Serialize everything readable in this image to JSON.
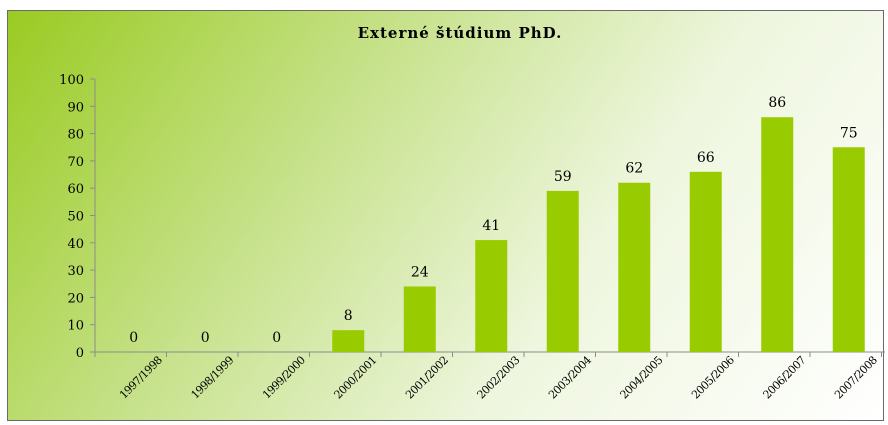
{
  "chart_data": {
    "type": "bar",
    "title": "Externé štúdium PhD.",
    "categories": [
      "1997/1998",
      "1998/1999",
      "1999/2000",
      "2000/2001",
      "2001/2002",
      "2002/2003",
      "2003/2004",
      "2004/2005",
      "2005/2006",
      "2006/2007",
      "2007/2008"
    ],
    "values": [
      0,
      0,
      0,
      8,
      24,
      41,
      59,
      62,
      66,
      86,
      75
    ],
    "data_labels": [
      "0",
      "0",
      "0",
      "8",
      "24",
      "41",
      "59",
      "62",
      "66",
      "86",
      "75"
    ],
    "yticks": [
      "0",
      "10",
      "20",
      "30",
      "40",
      "50",
      "60",
      "70",
      "80",
      "90",
      "100"
    ],
    "ylim": [
      0,
      100
    ],
    "xlabel": "",
    "ylabel": "",
    "grid": false,
    "legend": "none",
    "bar_color": "#99cc00"
  }
}
